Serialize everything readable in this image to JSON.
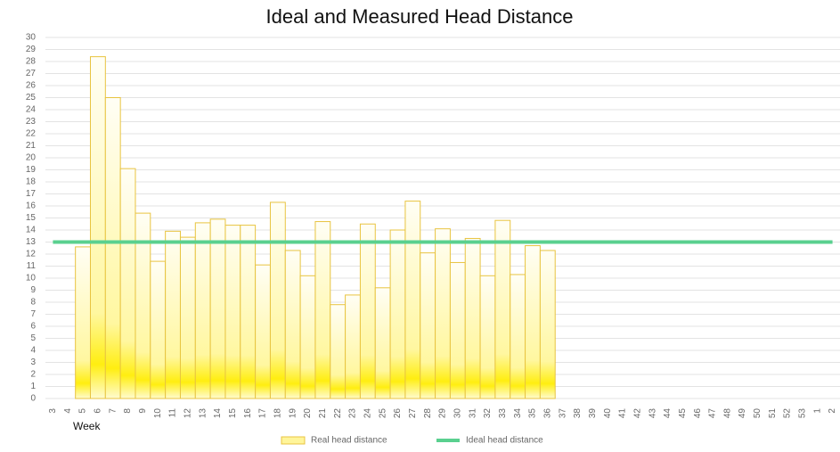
{
  "chart_data": {
    "type": "bar",
    "title": "Ideal and Measured Head Distance",
    "x_label": "Week",
    "categories": [
      "3",
      "4",
      "5",
      "6",
      "7",
      "8",
      "9",
      "10",
      "11",
      "12",
      "13",
      "14",
      "15",
      "16",
      "17",
      "18",
      "19",
      "20",
      "21",
      "22",
      "23",
      "24",
      "25",
      "26",
      "27",
      "28",
      "29",
      "30",
      "31",
      "32",
      "33",
      "34",
      "35",
      "36",
      "37",
      "38",
      "39",
      "40",
      "41",
      "42",
      "43",
      "44",
      "45",
      "46",
      "47",
      "48",
      "49",
      "50",
      "51",
      "52",
      "53",
      "1",
      "2"
    ],
    "series": [
      {
        "name": "Real head distance",
        "type": "bar",
        "color": "#ffee00",
        "values": [
          null,
          null,
          12.6,
          28.4,
          25,
          19.1,
          15.4,
          11.4,
          13.9,
          13.4,
          14.6,
          14.9,
          14.4,
          14.4,
          11.1,
          16.3,
          12.3,
          10.2,
          14.7,
          7.8,
          8.6,
          14.5,
          9.2,
          14.0,
          16.4,
          12.1,
          14.1,
          11.3,
          13.3,
          10.2,
          14.8,
          10.3,
          12.7,
          12.3,
          null,
          null,
          null,
          null,
          null,
          null,
          null,
          null,
          null,
          null,
          null,
          null,
          null,
          null,
          null,
          null,
          null,
          null,
          null
        ]
      },
      {
        "name": "Ideal head distance",
        "type": "line",
        "color": "#5ad08f",
        "values": [
          13,
          13,
          13,
          13,
          13,
          13,
          13,
          13,
          13,
          13,
          13,
          13,
          13,
          13,
          13,
          13,
          13,
          13,
          13,
          13,
          13,
          13,
          13,
          13,
          13,
          13,
          13,
          13,
          13,
          13,
          13,
          13,
          13,
          13,
          13,
          13,
          13,
          13,
          13,
          13,
          13,
          13,
          13,
          13,
          13,
          13,
          13,
          13,
          13,
          13,
          13,
          13,
          13
        ]
      }
    ],
    "ylim": [
      0,
      30
    ],
    "yticks": [
      0,
      1,
      2,
      3,
      4,
      5,
      6,
      7,
      8,
      9,
      10,
      11,
      12,
      13,
      14,
      15,
      16,
      17,
      18,
      19,
      20,
      21,
      22,
      23,
      24,
      25,
      26,
      27,
      28,
      29,
      30
    ],
    "grid": true,
    "legend": "bottom"
  }
}
